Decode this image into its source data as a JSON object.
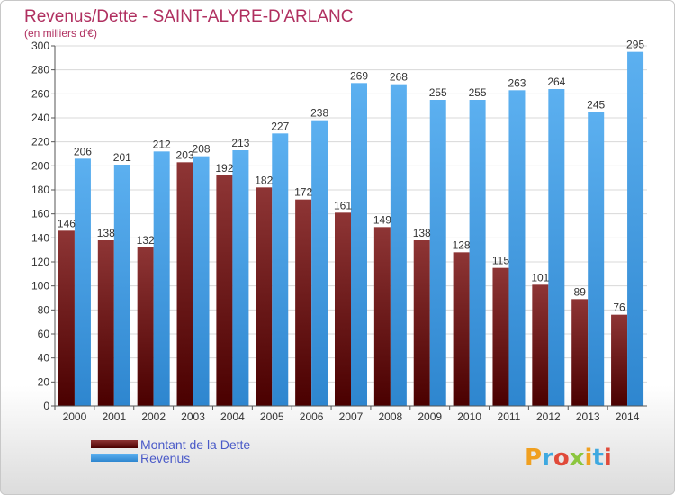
{
  "chart_data": {
    "type": "bar",
    "title": "Revenus/Dette - SAINT-ALYRE-D'ARLANC",
    "subtitle": "(en milliers d'€)",
    "categories": [
      "2000",
      "2001",
      "2002",
      "2003",
      "2004",
      "2005",
      "2006",
      "2007",
      "2008",
      "2009",
      "2010",
      "2011",
      "2012",
      "2013",
      "2014"
    ],
    "series": [
      {
        "name": "Montant de la Dette",
        "values": [
          146,
          138,
          132,
          203,
          192,
          182,
          172,
          161,
          149,
          138,
          128,
          115,
          101,
          89,
          76
        ],
        "color": "#7a1c1c"
      },
      {
        "name": "Revenus",
        "values": [
          206,
          201,
          212,
          208,
          213,
          227,
          238,
          269,
          268,
          255,
          255,
          263,
          264,
          245,
          295
        ],
        "color": "#4aa3e8"
      }
    ],
    "ylim": [
      0,
      300
    ],
    "yticks": [
      0,
      20,
      40,
      60,
      80,
      100,
      120,
      140,
      160,
      180,
      200,
      220,
      240,
      260,
      280,
      300
    ],
    "grid": true,
    "legend_placement": "bottom-left"
  },
  "brand": {
    "logo_text": "Proxiti"
  }
}
